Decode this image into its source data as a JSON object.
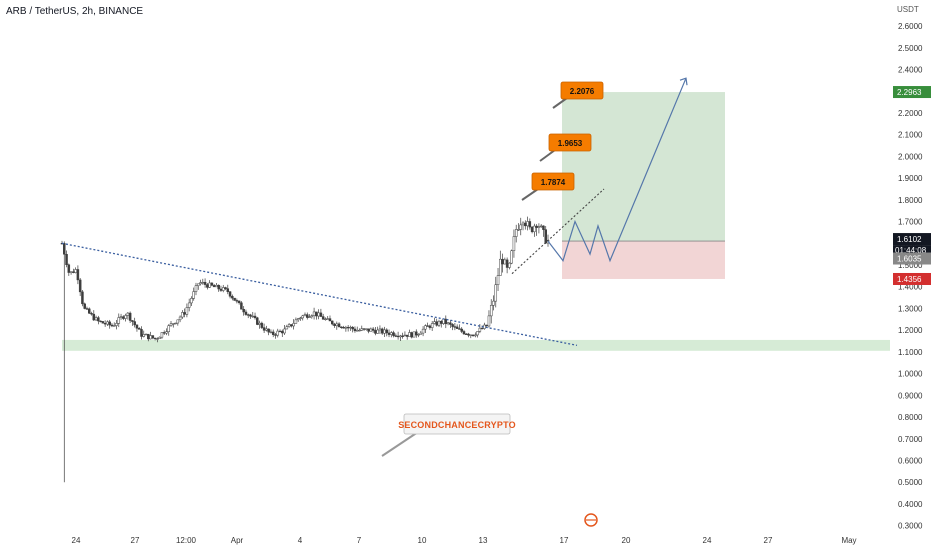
{
  "header": {
    "title": "ARB / TetherUS, 2h, BINANCE",
    "unit": "USDT"
  },
  "watermark": "SECONDCHANCECRYPTO",
  "colors": {
    "candle": "#3d3d3d",
    "trendline": "#3b5fa0",
    "support_zone": "#cfe8cf",
    "target_zone": "#cfe3cf",
    "stop_zone": "#f1d0d0",
    "projection": "#5577aa",
    "note_bg": "#f57c00",
    "tag_price": "#131722",
    "tag_price2": "#888888",
    "tag_stop": "#d32f2f",
    "tag_target": "#388e3c",
    "brand": "#e4571d"
  },
  "chart_data": {
    "type": "candlestick",
    "symbol": "ARB / TetherUS",
    "interval": "2h",
    "exchange": "BINANCE",
    "ylim": [
      0.28,
      2.72
    ],
    "y_ticks": [
      "2.6000",
      "2.5000",
      "2.4000",
      "2.3000",
      "2.2000",
      "2.1000",
      "2.0000",
      "1.9000",
      "1.8000",
      "1.7000",
      "1.6000",
      "1.5000",
      "1.4000",
      "1.3000",
      "1.2000",
      "1.1000",
      "1.0000",
      "0.9000",
      "0.8000",
      "0.7000",
      "0.6000",
      "0.5000",
      "0.4000",
      "0.3000"
    ],
    "x_ticks": [
      "24",
      "27",
      "12:00",
      "Apr",
      "4",
      "7",
      "10",
      "13",
      "17",
      "20",
      "24",
      "27",
      "May"
    ],
    "price_path": [
      {
        "t": 0,
        "price": 1.6
      },
      {
        "t": 2,
        "price": 1.46
      },
      {
        "t": 4,
        "price": 1.48
      },
      {
        "t": 6,
        "price": 1.3
      },
      {
        "t": 10,
        "price": 1.24
      },
      {
        "t": 14,
        "price": 1.22
      },
      {
        "t": 18,
        "price": 1.28
      },
      {
        "t": 22,
        "price": 1.18
      },
      {
        "t": 26,
        "price": 1.16
      },
      {
        "t": 30,
        "price": 1.22
      },
      {
        "t": 34,
        "price": 1.28
      },
      {
        "t": 38,
        "price": 1.42
      },
      {
        "t": 42,
        "price": 1.4
      },
      {
        "t": 46,
        "price": 1.38
      },
      {
        "t": 50,
        "price": 1.3
      },
      {
        "t": 54,
        "price": 1.24
      },
      {
        "t": 58,
        "price": 1.18
      },
      {
        "t": 62,
        "price": 1.2
      },
      {
        "t": 66,
        "price": 1.26
      },
      {
        "t": 70,
        "price": 1.28
      },
      {
        "t": 74,
        "price": 1.24
      },
      {
        "t": 78,
        "price": 1.22
      },
      {
        "t": 82,
        "price": 1.2
      },
      {
        "t": 86,
        "price": 1.2
      },
      {
        "t": 90,
        "price": 1.19
      },
      {
        "t": 94,
        "price": 1.18
      },
      {
        "t": 98,
        "price": 1.18
      },
      {
        "t": 102,
        "price": 1.22
      },
      {
        "t": 106,
        "price": 1.24
      },
      {
        "t": 110,
        "price": 1.2
      },
      {
        "t": 114,
        "price": 1.18
      },
      {
        "t": 118,
        "price": 1.22
      },
      {
        "t": 120,
        "price": 1.35
      },
      {
        "t": 122,
        "price": 1.54
      },
      {
        "t": 124,
        "price": 1.46
      },
      {
        "t": 126,
        "price": 1.66
      },
      {
        "t": 128,
        "price": 1.72
      },
      {
        "t": 130,
        "price": 1.66
      },
      {
        "t": 132,
        "price": 1.7
      },
      {
        "t": 134,
        "price": 1.63
      },
      {
        "t": 135,
        "price": 1.61
      }
    ],
    "spike_low": 0.5,
    "trendline": {
      "start": 1.6,
      "end": 1.13
    },
    "breakout_line": {
      "start": 1.46,
      "end": 1.85
    },
    "support_zone": [
      1.105,
      1.155
    ],
    "position": {
      "entry": 1.6102,
      "stop": 1.4356,
      "target": 2.2963
    },
    "targets": [
      "1.7874",
      "1.9653",
      "2.2076"
    ],
    "projection": [
      1.61,
      1.7,
      1.58,
      1.66,
      1.52,
      2.36
    ],
    "price_tags": {
      "last_price": "1.6102",
      "countdown": "01:44:08",
      "prev_close": "1.6035",
      "stop": "1.4356",
      "target": "2.2963"
    }
  }
}
